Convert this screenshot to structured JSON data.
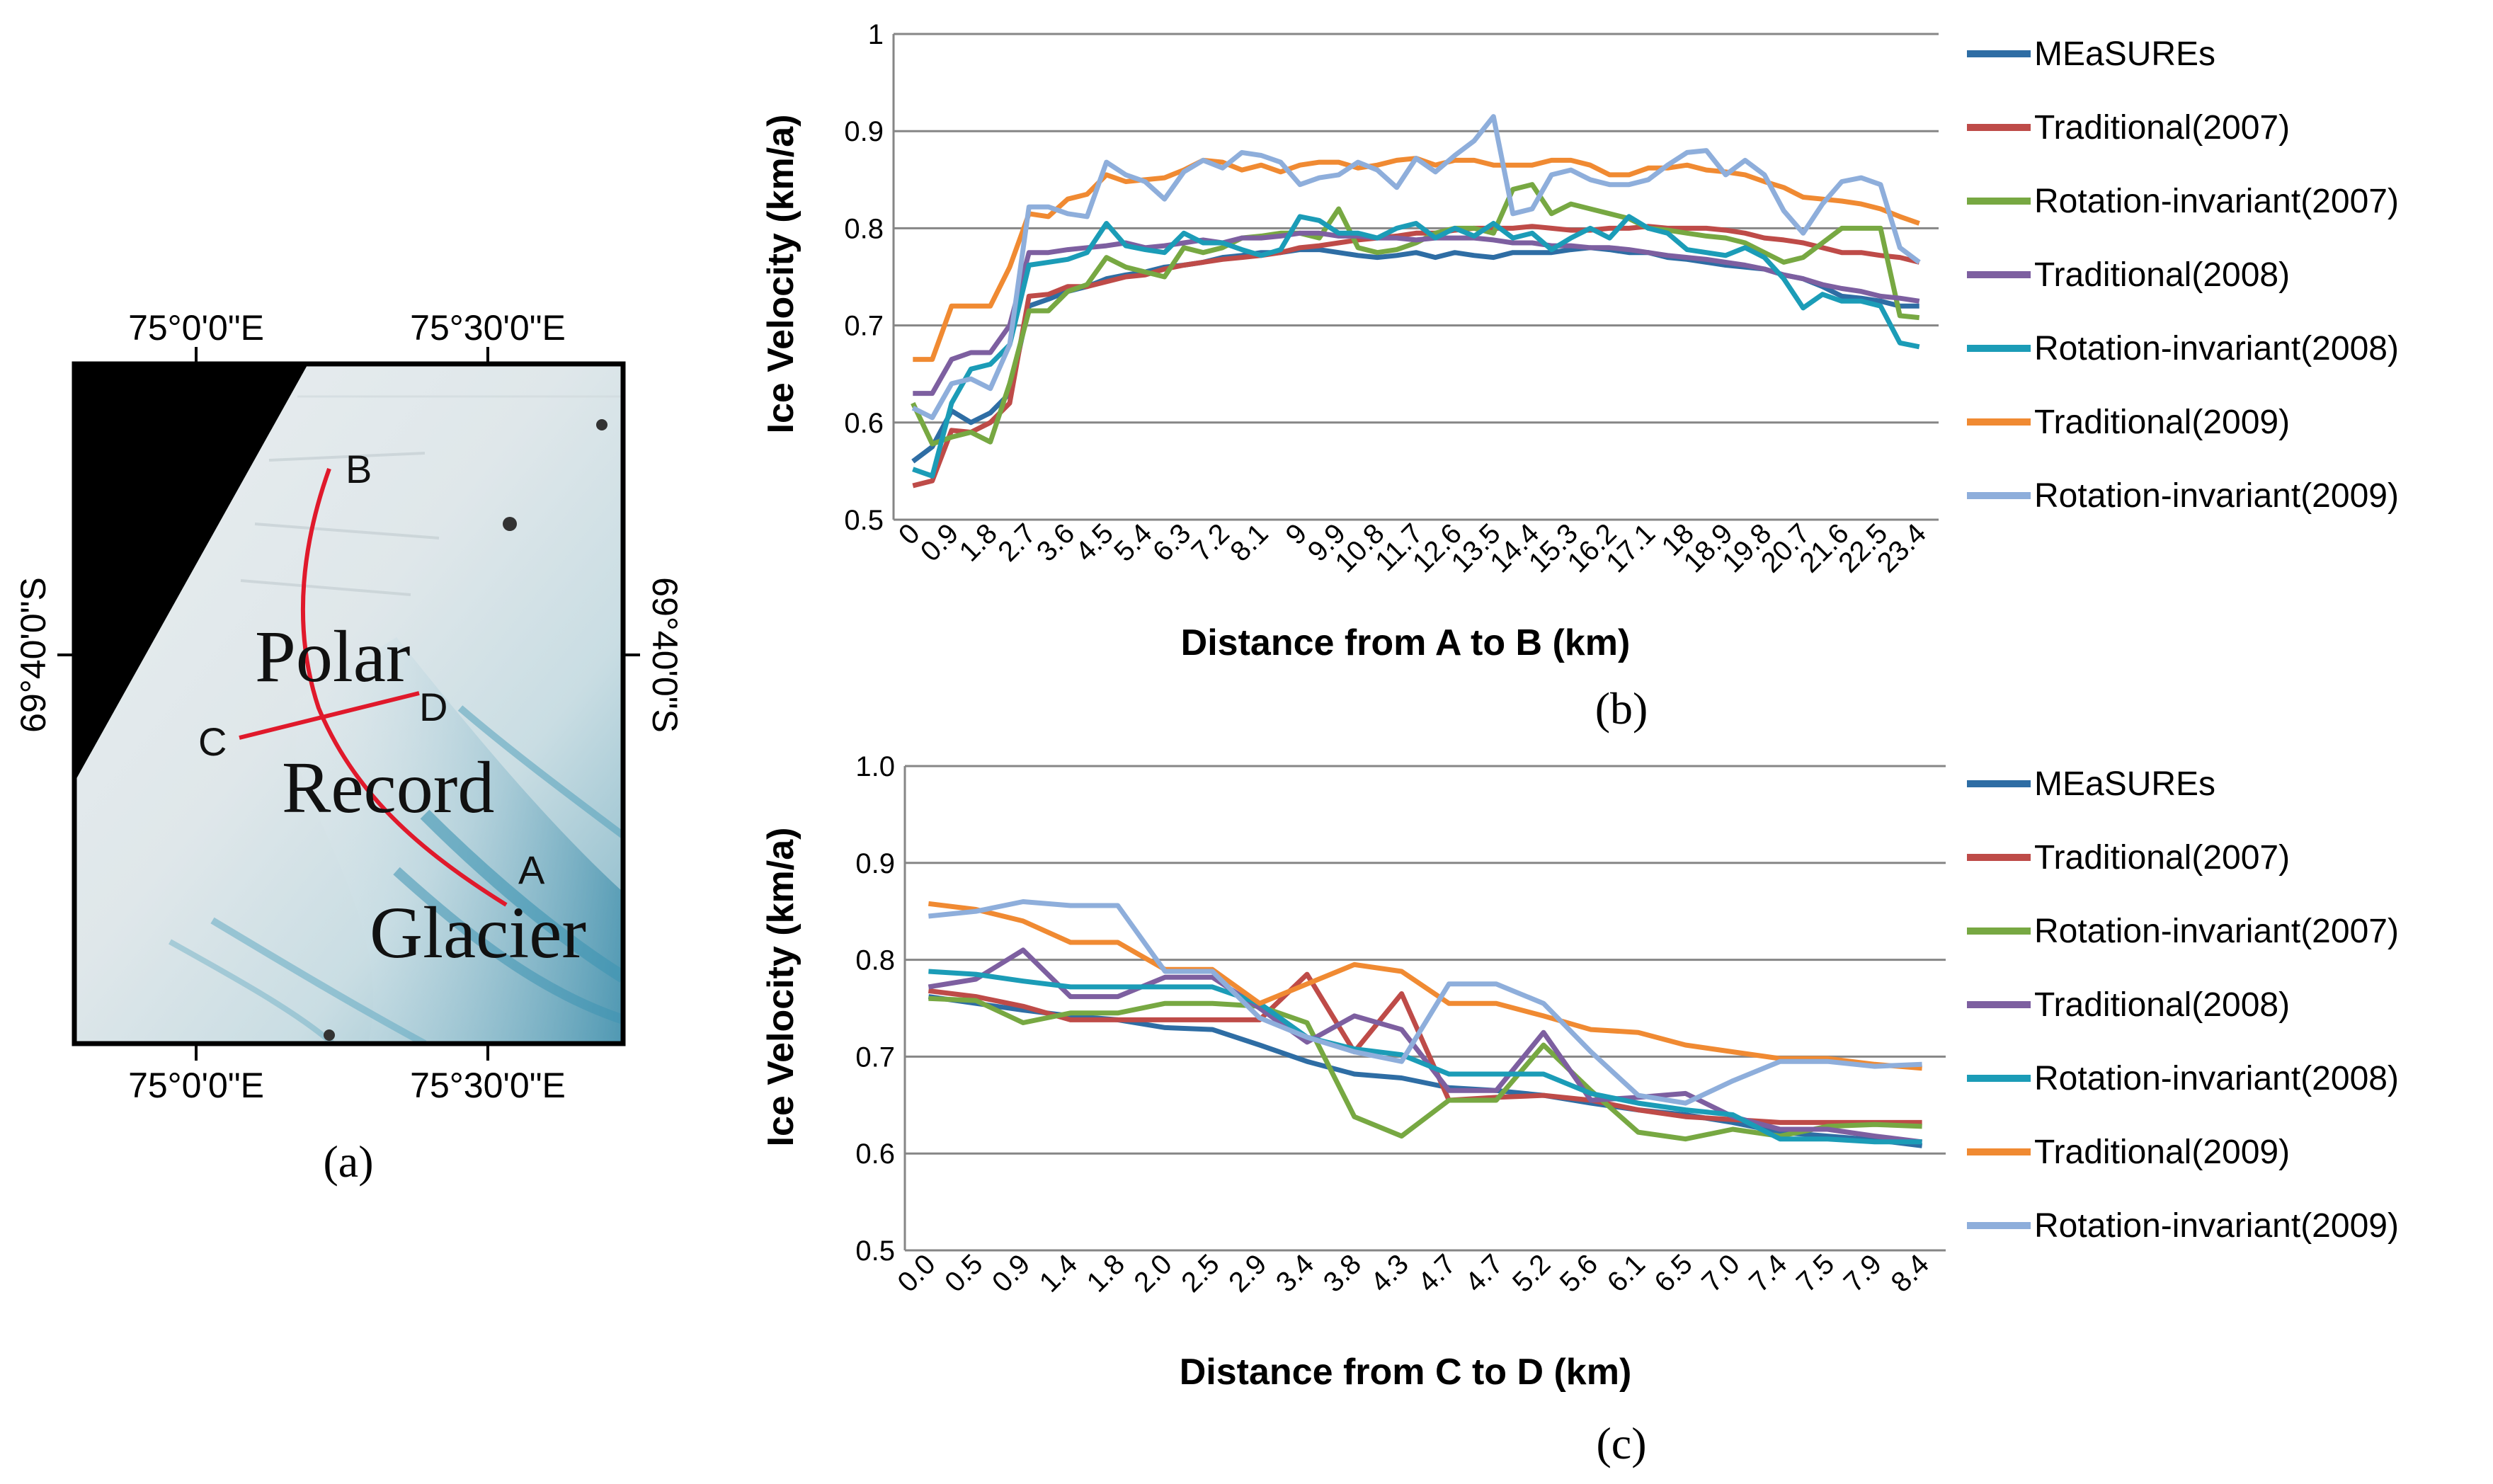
{
  "colors": {
    "MEaSUREs": "#2E6DA4",
    "Traditional(2007)": "#BE4B48",
    "Rotation-invariant(2007)": "#77A842",
    "Traditional(2008)": "#7D5FA0",
    "Rotation-invariant(2008)": "#1B9CB7",
    "Traditional(2009)": "#F08A32",
    "Rotation-invariant(2009)": "#8EAEDB",
    "gridline": "#868686",
    "route": "#E0192B"
  },
  "map": {
    "panel_label": "(a)",
    "top_coords": [
      "75°0'0\"E",
      "75°30'0\"E"
    ],
    "bottom_coords": [
      "75°0'0\"E",
      "75°30'0\"E"
    ],
    "left_coord": "69°40'0\"S",
    "right_coord": "69°40'0\"S",
    "place_words": [
      "Polar",
      "Record",
      "Glacier"
    ],
    "points": [
      "A",
      "B",
      "C",
      "D"
    ]
  },
  "chart_data": [
    {
      "type": "line",
      "panel_label": "(b)",
      "title": "",
      "xlabel": "Distance from A to B (km)",
      "ylabel": "Ice Velocity (km/a)",
      "ylim": [
        0.5,
        1.0
      ],
      "yticks": [
        "0.5",
        "0.6",
        "0.7",
        "0.8",
        "0.9",
        "1"
      ],
      "grid": true,
      "legend_position": "right",
      "categories": [
        "0",
        "0.9",
        "1.8",
        "2.7",
        "3.6",
        "4.5",
        "5.4",
        "6.3",
        "7.2",
        "8.1",
        "9",
        "9.9",
        "10.8",
        "11.7",
        "12.6",
        "13.5",
        "14.4",
        "15.3",
        "16.2",
        "17.1",
        "18",
        "18.9",
        "19.8",
        "20.7",
        "21.6",
        "22.5",
        "23.4"
      ],
      "x": [
        0,
        0.45,
        0.9,
        1.35,
        1.8,
        2.25,
        2.7,
        3.15,
        3.6,
        4.05,
        4.5,
        4.95,
        5.4,
        5.85,
        6.3,
        6.75,
        7.2,
        7.65,
        8.1,
        8.55,
        9,
        9.45,
        9.9,
        10.35,
        10.8,
        11.25,
        11.7,
        12.15,
        12.6,
        13.05,
        13.5,
        13.95,
        14.4,
        14.85,
        15.3,
        15.75,
        16.2,
        16.65,
        17.1,
        17.55,
        18,
        18.45,
        18.9,
        19.35,
        19.8,
        20.25,
        20.7,
        21.15,
        21.6,
        22.05,
        22.5,
        22.95,
        23.4
      ],
      "series": [
        {
          "name": "MEaSUREs",
          "values": [
            0.56,
            0.575,
            0.612,
            0.6,
            0.61,
            0.63,
            0.72,
            0.727,
            0.735,
            0.74,
            0.748,
            0.752,
            0.755,
            0.76,
            0.762,
            0.765,
            0.77,
            0.772,
            0.775,
            0.775,
            0.778,
            0.778,
            0.775,
            0.772,
            0.77,
            0.772,
            0.775,
            0.77,
            0.775,
            0.772,
            0.77,
            0.775,
            0.775,
            0.775,
            0.778,
            0.78,
            0.778,
            0.775,
            0.775,
            0.77,
            0.768,
            0.765,
            0.762,
            0.76,
            0.758,
            0.752,
            0.748,
            0.74,
            0.73,
            0.728,
            0.725,
            0.72,
            0.72
          ]
        },
        {
          "name": "Traditional(2007)",
          "values": [
            0.535,
            0.54,
            0.592,
            0.59,
            0.6,
            0.62,
            0.73,
            0.732,
            0.74,
            0.74,
            0.745,
            0.75,
            0.752,
            0.758,
            0.762,
            0.765,
            0.768,
            0.77,
            0.772,
            0.775,
            0.78,
            0.782,
            0.785,
            0.788,
            0.79,
            0.792,
            0.795,
            0.795,
            0.798,
            0.8,
            0.8,
            0.8,
            0.802,
            0.8,
            0.798,
            0.798,
            0.8,
            0.8,
            0.802,
            0.8,
            0.8,
            0.8,
            0.798,
            0.795,
            0.79,
            0.788,
            0.785,
            0.78,
            0.775,
            0.775,
            0.772,
            0.77,
            0.765
          ]
        },
        {
          "name": "Rotation-invariant(2007)",
          "values": [
            0.62,
            0.578,
            0.585,
            0.59,
            0.58,
            0.64,
            0.715,
            0.715,
            0.735,
            0.742,
            0.77,
            0.76,
            0.755,
            0.75,
            0.78,
            0.775,
            0.78,
            0.79,
            0.792,
            0.795,
            0.795,
            0.79,
            0.82,
            0.78,
            0.775,
            0.778,
            0.785,
            0.795,
            0.8,
            0.8,
            0.795,
            0.84,
            0.845,
            0.815,
            0.825,
            0.82,
            0.815,
            0.81,
            0.8,
            0.798,
            0.795,
            0.792,
            0.79,
            0.785,
            0.775,
            0.765,
            0.77,
            0.785,
            0.8,
            0.8,
            0.8,
            0.71,
            0.708
          ]
        },
        {
          "name": "Traditional(2008)",
          "values": [
            0.63,
            0.63,
            0.665,
            0.672,
            0.672,
            0.7,
            0.775,
            0.775,
            0.778,
            0.78,
            0.782,
            0.785,
            0.78,
            0.782,
            0.785,
            0.788,
            0.785,
            0.79,
            0.79,
            0.792,
            0.795,
            0.795,
            0.792,
            0.792,
            0.79,
            0.79,
            0.788,
            0.79,
            0.79,
            0.79,
            0.788,
            0.785,
            0.785,
            0.782,
            0.782,
            0.78,
            0.78,
            0.778,
            0.775,
            0.772,
            0.77,
            0.768,
            0.765,
            0.762,
            0.758,
            0.752,
            0.748,
            0.742,
            0.738,
            0.735,
            0.73,
            0.728,
            0.725
          ]
        },
        {
          "name": "Rotation-invariant(2008)",
          "values": [
            0.552,
            0.545,
            0.62,
            0.655,
            0.66,
            0.68,
            0.762,
            0.765,
            0.768,
            0.775,
            0.805,
            0.782,
            0.778,
            0.775,
            0.795,
            0.785,
            0.785,
            0.778,
            0.772,
            0.778,
            0.812,
            0.808,
            0.795,
            0.795,
            0.79,
            0.8,
            0.805,
            0.79,
            0.8,
            0.792,
            0.805,
            0.79,
            0.795,
            0.778,
            0.79,
            0.8,
            0.79,
            0.812,
            0.8,
            0.795,
            0.778,
            0.775,
            0.772,
            0.78,
            0.77,
            0.748,
            0.718,
            0.732,
            0.725,
            0.725,
            0.72,
            0.682,
            0.678
          ]
        },
        {
          "name": "Traditional(2009)",
          "values": [
            0.665,
            0.665,
            0.72,
            0.72,
            0.72,
            0.76,
            0.815,
            0.812,
            0.83,
            0.835,
            0.855,
            0.848,
            0.85,
            0.852,
            0.86,
            0.87,
            0.868,
            0.86,
            0.865,
            0.858,
            0.865,
            0.868,
            0.868,
            0.862,
            0.865,
            0.87,
            0.872,
            0.865,
            0.87,
            0.87,
            0.865,
            0.865,
            0.865,
            0.87,
            0.87,
            0.865,
            0.855,
            0.855,
            0.862,
            0.862,
            0.865,
            0.86,
            0.858,
            0.855,
            0.848,
            0.842,
            0.832,
            0.83,
            0.828,
            0.825,
            0.82,
            0.812,
            0.805
          ]
        },
        {
          "name": "Rotation-invariant(2009)",
          "values": [
            0.615,
            0.605,
            0.64,
            0.645,
            0.635,
            0.68,
            0.822,
            0.822,
            0.815,
            0.812,
            0.868,
            0.855,
            0.848,
            0.83,
            0.858,
            0.87,
            0.862,
            0.878,
            0.875,
            0.868,
            0.845,
            0.852,
            0.855,
            0.868,
            0.86,
            0.842,
            0.872,
            0.858,
            0.875,
            0.89,
            0.915,
            0.815,
            0.82,
            0.855,
            0.86,
            0.85,
            0.845,
            0.845,
            0.85,
            0.865,
            0.878,
            0.88,
            0.855,
            0.87,
            0.855,
            0.818,
            0.795,
            0.825,
            0.848,
            0.852,
            0.845,
            0.78,
            0.765
          ]
        }
      ]
    },
    {
      "type": "line",
      "panel_label": "(c)",
      "title": "",
      "xlabel": "Distance from C to D (km)",
      "ylabel": "Ice Velocity (km/a)",
      "ylim": [
        0.5,
        1.0
      ],
      "yticks": [
        "0.5",
        "0.6",
        "0.7",
        "0.8",
        "0.9",
        "1.0"
      ],
      "grid": true,
      "legend_position": "right",
      "categories": [
        "0.0",
        "0.5",
        "0.9",
        "1.4",
        "1.8",
        "2.0",
        "2.5",
        "2.9",
        "3.4",
        "3.8",
        "4.3",
        "4.7",
        "4.7",
        "5.2",
        "5.6",
        "6.1",
        "6.5",
        "7.0",
        "7.4",
        "7.5",
        "7.9",
        "8.4"
      ],
      "series": [
        {
          "name": "MEaSUREs",
          "values": [
            0.762,
            0.755,
            0.748,
            0.742,
            0.738,
            0.73,
            0.728,
            0.712,
            0.695,
            0.682,
            0.678,
            0.668,
            0.665,
            0.66,
            0.652,
            0.645,
            0.64,
            0.632,
            0.622,
            0.618,
            0.614,
            0.608
          ]
        },
        {
          "name": "Traditional(2007)",
          "values": [
            0.768,
            0.762,
            0.752,
            0.738,
            0.738,
            0.738,
            0.738,
            0.738,
            0.785,
            0.705,
            0.765,
            0.655,
            0.658,
            0.66,
            0.655,
            0.645,
            0.638,
            0.635,
            0.632,
            0.632,
            0.632,
            0.632
          ]
        },
        {
          "name": "Rotation-invariant(2007)",
          "values": [
            0.76,
            0.758,
            0.735,
            0.745,
            0.745,
            0.755,
            0.755,
            0.752,
            0.735,
            0.638,
            0.618,
            0.655,
            0.655,
            0.712,
            0.665,
            0.622,
            0.615,
            0.625,
            0.618,
            0.628,
            0.63,
            0.628
          ]
        },
        {
          "name": "Traditional(2008)",
          "values": [
            0.772,
            0.78,
            0.81,
            0.762,
            0.762,
            0.782,
            0.782,
            0.75,
            0.715,
            0.742,
            0.728,
            0.665,
            0.665,
            0.725,
            0.655,
            0.658,
            0.662,
            0.638,
            0.625,
            0.625,
            0.618,
            0.612
          ]
        },
        {
          "name": "Rotation-invariant(2008)",
          "values": [
            0.788,
            0.785,
            0.778,
            0.772,
            0.772,
            0.772,
            0.772,
            0.755,
            0.72,
            0.708,
            0.702,
            0.682,
            0.682,
            0.682,
            0.662,
            0.652,
            0.645,
            0.64,
            0.615,
            0.615,
            0.612,
            0.612
          ]
        },
        {
          "name": "Traditional(2009)",
          "values": [
            0.858,
            0.852,
            0.84,
            0.818,
            0.818,
            0.79,
            0.79,
            0.755,
            0.775,
            0.795,
            0.788,
            0.755,
            0.755,
            0.742,
            0.728,
            0.725,
            0.712,
            0.705,
            0.698,
            0.698,
            0.692,
            0.688
          ]
        },
        {
          "name": "Rotation-invariant(2009)",
          "values": [
            0.845,
            0.85,
            0.86,
            0.856,
            0.856,
            0.788,
            0.788,
            0.74,
            0.72,
            0.705,
            0.695,
            0.775,
            0.775,
            0.755,
            0.705,
            0.66,
            0.652,
            0.675,
            0.695,
            0.695,
            0.69,
            0.692
          ]
        }
      ]
    }
  ]
}
